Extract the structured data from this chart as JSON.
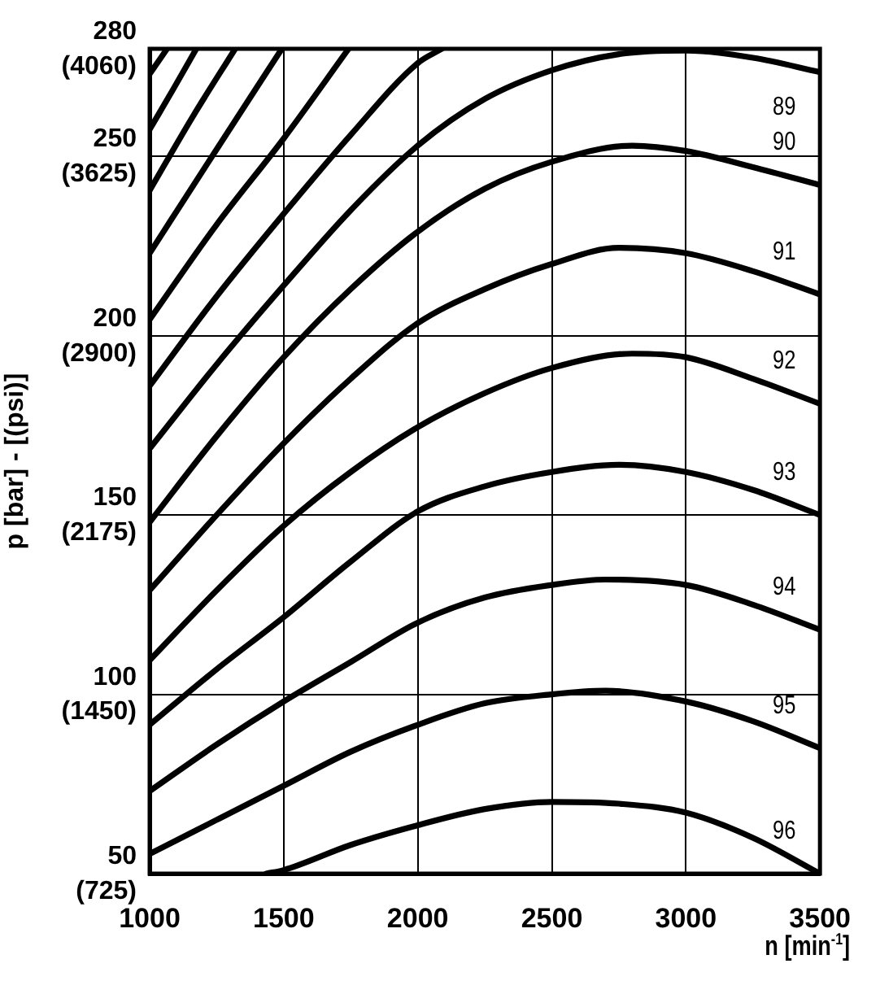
{
  "chart_data": {
    "type": "line",
    "xlabel": "n [min$^{-1}$]",
    "y2label": "p [bar] - [(psi)]",
    "xlim": [
      1000,
      3500
    ],
    "xticks": [
      1000,
      1500,
      2000,
      2500,
      3000,
      3500
    ],
    "ylim": [
      50,
      280
    ],
    "yticks": [
      50,
      100,
      150,
      200,
      250,
      280
    ],
    "y2lim": [
      725,
      4060
    ],
    "y2ticks": [
      {
        "value": 725,
        "label": "(725)"
      },
      {
        "value": 1450,
        "label": "(1450)"
      },
      {
        "value": 2175,
        "label": "(2175)"
      },
      {
        "value": 2900,
        "label": "(2900)"
      },
      {
        "value": 3625,
        "label": "(3625)"
      },
      {
        "value": 4060,
        "label": "(4060)"
      }
    ],
    "grid": true,
    "legend": false,
    "marker": "none",
    "line_style": "solid",
    "series": [
      {
        "name": "96",
        "color": "#000000",
        "x": [
          1435,
          1500,
          1750,
          2000,
          2250,
          2500,
          2750,
          3000,
          3250,
          3500
        ],
        "values": [
          50,
          51,
          58,
          63.5,
          68,
          70,
          69.5,
          67,
          60,
          50
        ]
      },
      {
        "name": "95",
        "color": "#000000",
        "x": [
          1000,
          1250,
          1500,
          1750,
          2000,
          2250,
          2500,
          2700,
          3000,
          3250,
          3500
        ],
        "values": [
          55.5,
          65,
          74.5,
          84,
          91.5,
          97.5,
          100,
          101,
          98,
          92.5,
          85
        ]
      },
      {
        "name": "94",
        "color": "#000000",
        "x": [
          1000,
          1250,
          1500,
          1750,
          2000,
          2250,
          2500,
          2700,
          3000,
          3250,
          3500
        ],
        "values": [
          73,
          86,
          98,
          109,
          120,
          127,
          130.5,
          132,
          130.5,
          125,
          118
        ]
      },
      {
        "name": "93",
        "color": "#000000",
        "x": [
          1000,
          1250,
          1500,
          1750,
          2000,
          2250,
          2500,
          2750,
          3000,
          3250,
          3500
        ],
        "values": [
          91.5,
          107,
          121.5,
          137,
          151,
          158,
          162,
          164,
          162,
          157,
          150
        ]
      },
      {
        "name": "92",
        "color": "#000000",
        "x": [
          1000,
          1250,
          1500,
          1750,
          2000,
          2250,
          2500,
          2800,
          3000,
          3250,
          3500
        ],
        "values": [
          109.5,
          129,
          147,
          162,
          174.5,
          184,
          191,
          195,
          194,
          188,
          181
        ]
      },
      {
        "name": "91",
        "color": "#000000",
        "x": [
          1000,
          1250,
          1500,
          1750,
          2000,
          2250,
          2500,
          2750,
          3000,
          3250,
          3500
        ],
        "values": [
          129,
          150,
          170,
          188,
          203.5,
          213,
          220,
          224.5,
          223,
          218,
          211.5
        ]
      },
      {
        "name": "90",
        "color": "#000000",
        "x": [
          1000,
          1250,
          1500,
          1750,
          2000,
          2250,
          2500,
          2800,
          3000,
          3250,
          3500
        ],
        "values": [
          148,
          172,
          194,
          213,
          229,
          241,
          248.5,
          253,
          251.5,
          247,
          242
        ]
      },
      {
        "name": "89",
        "color": "#000000",
        "x": [
          1000,
          1250,
          1500,
          1750,
          2000,
          2250,
          2500,
          2750,
          3000,
          3250,
          3500
        ],
        "values": [
          168.5,
          192,
          214,
          235,
          253,
          266,
          274,
          278.5,
          279.5,
          277.5,
          273.5
        ]
      },
      {
        "color": "#000000",
        "x": [
          1000,
          1250,
          1500,
          1750,
          2000,
          2090
        ],
        "values": [
          186,
          211,
          234,
          256,
          276,
          280
        ]
      },
      {
        "color": "#000000",
        "x": [
          1000,
          1250,
          1500,
          1742
        ],
        "values": [
          204.5,
          231,
          255,
          280
        ]
      },
      {
        "color": "#000000",
        "x": [
          1000,
          1250,
          1493
        ],
        "values": [
          223,
          252,
          280
        ]
      },
      {
        "color": "#000000",
        "x": [
          1000,
          1160,
          1319
        ],
        "values": [
          240.5,
          261,
          280
        ]
      },
      {
        "color": "#000000",
        "x": [
          1000,
          1090,
          1174
        ],
        "values": [
          257.5,
          269,
          280
        ]
      },
      {
        "color": "#000000",
        "x": [
          1000,
          1065
        ],
        "values": [
          273,
          280
        ]
      }
    ]
  }
}
